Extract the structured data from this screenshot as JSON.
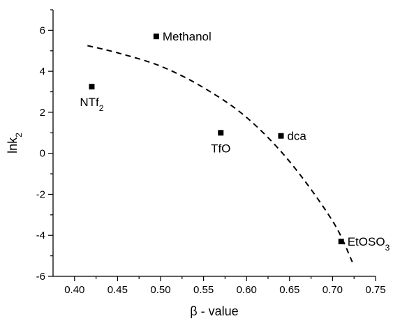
{
  "chart_data": {
    "type": "scatter",
    "title": "",
    "xlabel": {
      "main": "β - value",
      "sub": ""
    },
    "ylabel": {
      "main": "lnk",
      "sub": "2"
    },
    "xlim": [
      0.375,
      0.75
    ],
    "ylim": [
      -6,
      7
    ],
    "xticks": [
      0.4,
      0.45,
      0.5,
      0.55,
      0.6,
      0.65,
      0.7,
      0.75
    ],
    "xtick_labels": [
      "0.40",
      "0.45",
      "0.50",
      "0.55",
      "0.60",
      "0.65",
      "0.70",
      "0.75"
    ],
    "yticks": [
      -6,
      -4,
      -2,
      0,
      2,
      4,
      6
    ],
    "ytick_labels": [
      "-6",
      "-4",
      "-2",
      "0",
      "2",
      "4",
      "6"
    ],
    "grid": false,
    "legend": "none",
    "points": [
      {
        "x": 0.42,
        "y": 3.25,
        "label": "NTf",
        "sub": "2",
        "pos": "below"
      },
      {
        "x": 0.495,
        "y": 5.7,
        "label": "Methanol",
        "sub": "",
        "pos": "right"
      },
      {
        "x": 0.57,
        "y": 1.0,
        "label": "TfO",
        "sub": "",
        "pos": "below"
      },
      {
        "x": 0.64,
        "y": 0.85,
        "label": "dca",
        "sub": "",
        "pos": "right"
      },
      {
        "x": 0.71,
        "y": -4.3,
        "label": "EtOSO",
        "sub": "3",
        "pos": "right"
      }
    ],
    "fit_curve": {
      "style": "dashed",
      "x": [
        0.415,
        0.45,
        0.5,
        0.55,
        0.6,
        0.65,
        0.7,
        0.723
      ],
      "y": [
        5.25,
        4.9,
        4.25,
        3.2,
        1.75,
        -0.4,
        -3.3,
        -5.3
      ]
    },
    "colors": {
      "marker": "#000000",
      "line": "#000000",
      "text": "#000000"
    }
  }
}
